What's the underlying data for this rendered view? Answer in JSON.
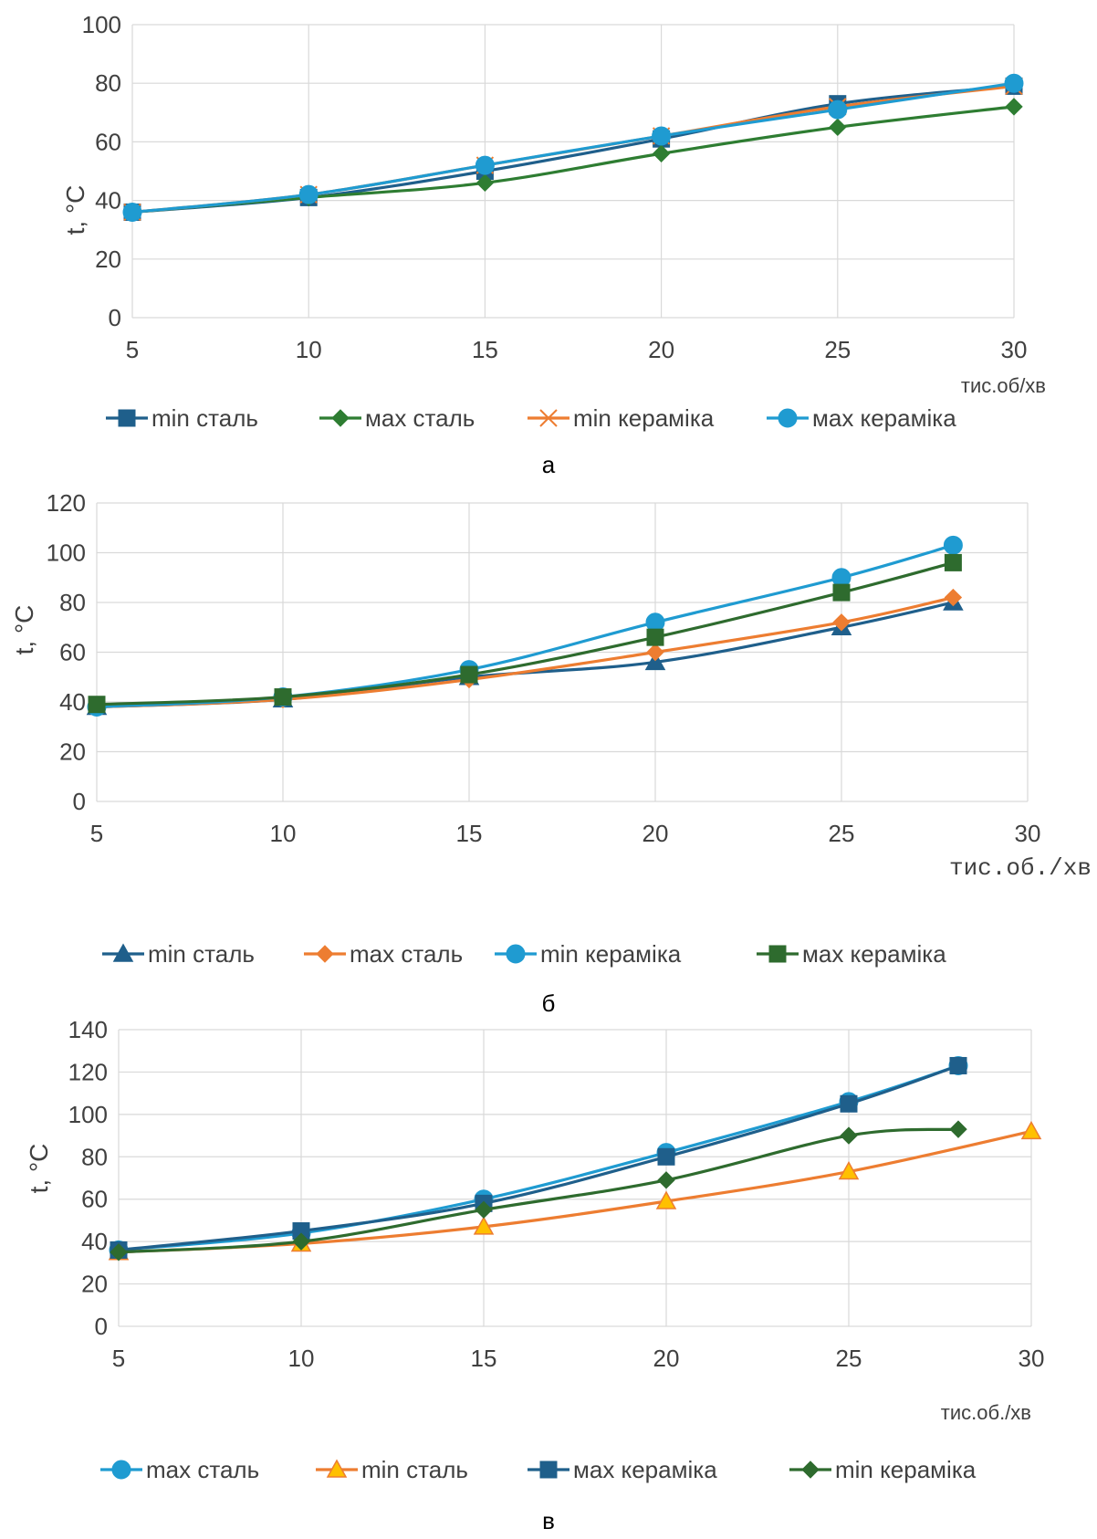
{
  "chart_data": [
    {
      "type": "line",
      "caption": "а",
      "ylabel": "t, °C",
      "xlabel": "тис.об/хв",
      "ylim": [
        0,
        100
      ],
      "xlim": [
        5,
        30
      ],
      "yticks": [
        0,
        20,
        40,
        60,
        80,
        100
      ],
      "xticks": [
        5,
        10,
        15,
        20,
        25,
        30
      ],
      "grid": true,
      "legend": "bottom",
      "series": [
        {
          "name": "min сталь",
          "color": "#1f5f8b",
          "marker": "square",
          "x": [
            5,
            10,
            15,
            20,
            25,
            30
          ],
          "y": [
            36,
            41,
            50,
            61,
            73,
            79
          ]
        },
        {
          "name": "мах сталь",
          "color": "#2e7d32",
          "marker": "diamond",
          "x": [
            5,
            10,
            15,
            20,
            25,
            30
          ],
          "y": [
            36,
            41,
            46,
            56,
            65,
            72
          ]
        },
        {
          "name": "min кераміка",
          "color": "#ed7d31",
          "marker": "x",
          "x": [
            5,
            10,
            15,
            20,
            25,
            30
          ],
          "y": [
            36,
            42,
            52,
            62,
            72,
            79
          ]
        },
        {
          "name": "мах кераміка",
          "color": "#1f9bd1",
          "marker": "circle",
          "x": [
            5,
            10,
            15,
            20,
            25,
            30
          ],
          "y": [
            36,
            42,
            52,
            62,
            71,
            80
          ]
        }
      ]
    },
    {
      "type": "line",
      "caption": "б",
      "ylabel": "t, °C",
      "xlabel": "тис.об./хв",
      "ylim": [
        0,
        120
      ],
      "xlim": [
        5,
        30
      ],
      "yticks": [
        0,
        20,
        40,
        60,
        80,
        100,
        120
      ],
      "xticks": [
        5,
        10,
        15,
        20,
        25,
        30
      ],
      "grid": true,
      "legend": "bottom",
      "series": [
        {
          "name": "min сталь",
          "color": "#1f5f8b",
          "marker": "triangle",
          "x": [
            5,
            10,
            15,
            20,
            25,
            28
          ],
          "y": [
            38,
            41,
            50,
            56,
            70,
            80
          ]
        },
        {
          "name": "max сталь",
          "color": "#ed7d31",
          "marker": "diamond",
          "x": [
            5,
            10,
            15,
            20,
            25,
            28
          ],
          "y": [
            38,
            41,
            49,
            60,
            72,
            82
          ]
        },
        {
          "name": "min кераміка",
          "color": "#1f9bd1",
          "marker": "circle",
          "x": [
            5,
            10,
            15,
            20,
            25,
            28
          ],
          "y": [
            38,
            42,
            53,
            72,
            90,
            103
          ]
        },
        {
          "name": "мах кераміка",
          "color": "#2e6b2e",
          "marker": "square",
          "x": [
            5,
            10,
            15,
            20,
            25,
            28
          ],
          "y": [
            39,
            42,
            51,
            66,
            84,
            96
          ]
        }
      ]
    },
    {
      "type": "line",
      "caption": "в",
      "ylabel": "t, °C",
      "xlabel": "тис.об./хв",
      "ylim": [
        0,
        140
      ],
      "xlim": [
        5,
        30
      ],
      "yticks": [
        0,
        20,
        40,
        60,
        80,
        100,
        120,
        140
      ],
      "xticks": [
        5,
        10,
        15,
        20,
        25,
        30
      ],
      "grid": true,
      "legend": "bottom",
      "series": [
        {
          "name": "max сталь",
          "color": "#1f9bd1",
          "marker": "circle",
          "x": [
            5,
            10,
            15,
            20,
            25,
            28
          ],
          "y": [
            36,
            44,
            60,
            82,
            106,
            123
          ]
        },
        {
          "name": "min сталь",
          "color": "#ed7d31",
          "marker": "triangle",
          "x": [
            5,
            10,
            15,
            20,
            25,
            30
          ],
          "y": [
            35,
            39,
            47,
            59,
            73,
            92
          ]
        },
        {
          "name": "мах кераміка",
          "color": "#1f5f8b",
          "marker": "square",
          "x": [
            5,
            10,
            15,
            20,
            25,
            28
          ],
          "y": [
            36,
            45,
            58,
            80,
            105,
            123
          ]
        },
        {
          "name": "min кераміка",
          "color": "#2e6b2e",
          "marker": "diamond",
          "x": [
            5,
            10,
            15,
            20,
            25,
            28
          ],
          "y": [
            35,
            40,
            55,
            69,
            90,
            93
          ]
        }
      ]
    }
  ]
}
